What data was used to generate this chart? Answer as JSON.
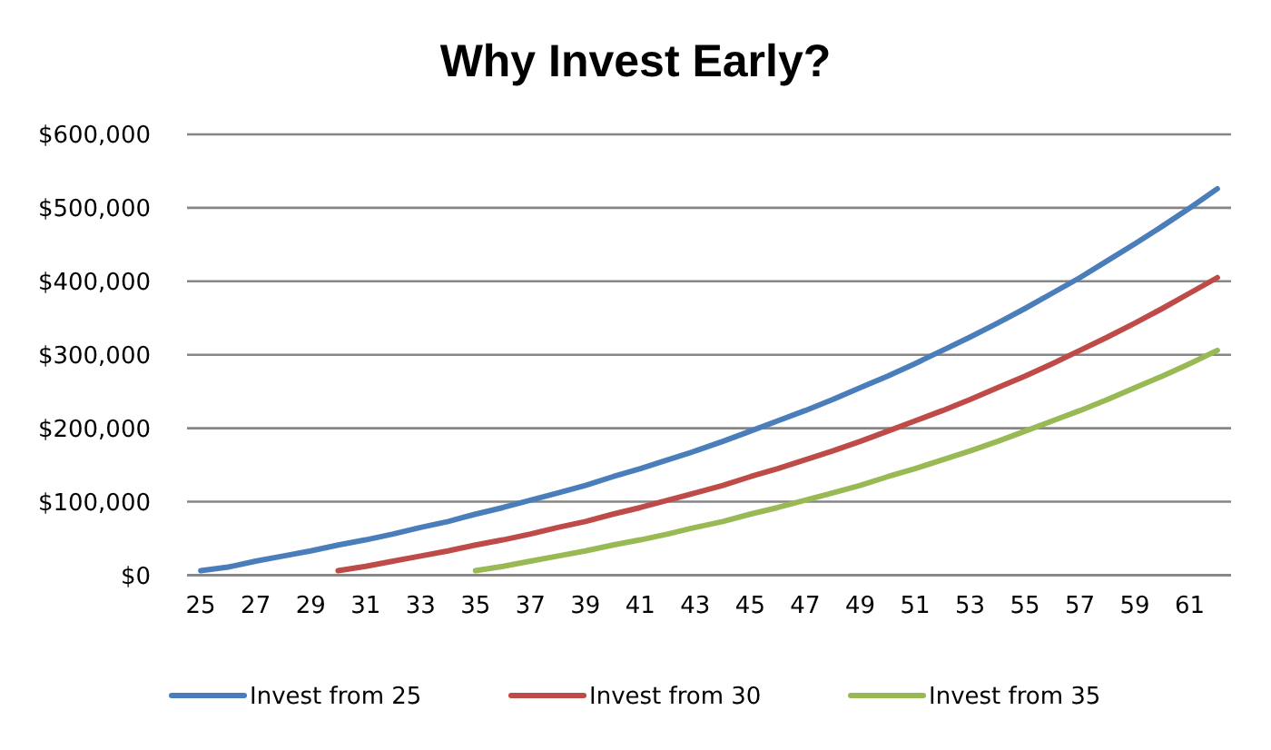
{
  "chart_data": {
    "type": "line",
    "title": "Why Invest Early?",
    "categories": [
      "25",
      null,
      "27",
      null,
      "29",
      null,
      "31",
      null,
      "33",
      null,
      "35",
      null,
      "37",
      null,
      "39",
      null,
      "41",
      null,
      "43",
      null,
      "45",
      null,
      "47",
      null,
      "49",
      null,
      "51",
      null,
      "53",
      null,
      "55",
      null,
      "57",
      null,
      "59",
      null,
      "61",
      null
    ],
    "series": [
      {
        "name": "Invest from 25",
        "color": "#4a7ebb",
        "values": [
          6000,
          11000,
          19000,
          26000,
          33000,
          41000,
          48000,
          56000,
          65000,
          73000,
          83000,
          92000,
          102000,
          112000,
          122000,
          134000,
          145000,
          157000,
          169000,
          182000,
          196000,
          210000,
          224000,
          239000,
          255000,
          271000,
          288000,
          306000,
          324000,
          343000,
          363000,
          384000,
          405000,
          428000,
          451000,
          475000,
          500000,
          526000
        ]
      },
      {
        "name": "Invest from 30",
        "color": "#be4b48",
        "values": [
          null,
          null,
          null,
          null,
          null,
          6000,
          12000,
          19000,
          26000,
          33000,
          41000,
          48000,
          56000,
          65000,
          73000,
          83000,
          92000,
          102000,
          112000,
          122000,
          134000,
          145000,
          157000,
          169000,
          182000,
          196000,
          210000,
          224000,
          239000,
          255000,
          271000,
          288000,
          306000,
          324000,
          343000,
          363000,
          384000,
          405000
        ]
      },
      {
        "name": "Invest from 35",
        "color": "#98b954",
        "values": [
          null,
          null,
          null,
          null,
          null,
          null,
          null,
          null,
          null,
          null,
          6000,
          12000,
          19000,
          26000,
          33000,
          41000,
          48000,
          56000,
          65000,
          73000,
          83000,
          92000,
          102000,
          112000,
          122000,
          134000,
          145000,
          157000,
          169000,
          182000,
          196000,
          210000,
          224000,
          239000,
          255000,
          271000,
          288000,
          306000
        ]
      }
    ],
    "ylim": [
      0,
      600000
    ],
    "yticks": [
      {
        "value": 0,
        "label": "$0"
      },
      {
        "value": 100000,
        "label": "$100,000"
      },
      {
        "value": 200000,
        "label": "$200,000"
      },
      {
        "value": 300000,
        "label": "$300,000"
      },
      {
        "value": 400000,
        "label": "$400,000"
      },
      {
        "value": 500000,
        "label": "$500,000"
      },
      {
        "value": 600000,
        "label": "$600,000"
      }
    ],
    "grid": "y",
    "legend": "bottom",
    "line_style": "solid"
  }
}
